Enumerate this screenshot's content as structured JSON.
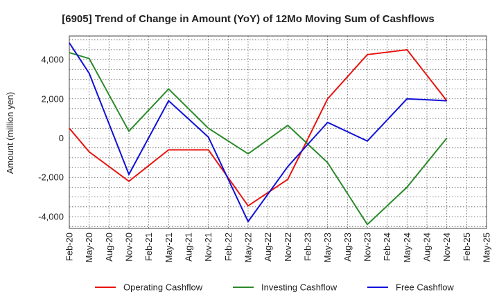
{
  "chart_data": {
    "type": "line",
    "title": "[6905]  Trend of Change in Amount (YoY) of 12Mo Moving Sum of Cashflows",
    "xlabel": "",
    "ylabel": "Amount (million yen)",
    "categories": [
      "Feb-20",
      "May-20",
      "Aug-20",
      "Nov-20",
      "Feb-21",
      "May-21",
      "Aug-21",
      "Nov-21",
      "Feb-22",
      "May-22",
      "Aug-22",
      "Nov-22",
      "Feb-23",
      "May-23",
      "Aug-23",
      "Nov-23",
      "Feb-24",
      "May-24",
      "Aug-24",
      "Nov-24",
      "Feb-25",
      "May-25"
    ],
    "yticks": [
      -4000,
      -2000,
      0,
      2000,
      4000
    ],
    "ytick_labels": [
      "-4,000",
      "-2,000",
      "0",
      "2,000",
      "4,000"
    ],
    "ylim": [
      -4600,
      5200
    ],
    "grid": true,
    "legend_position": "bottom",
    "series": [
      {
        "name": "Operating Cashflow",
        "color": "#e8130f",
        "values": [
          500,
          -700,
          null,
          -2200,
          null,
          -600,
          null,
          -600,
          null,
          -3450,
          null,
          -2100,
          null,
          2000,
          null,
          4250,
          null,
          4500,
          null,
          1900,
          null,
          null
        ]
      },
      {
        "name": "Investing Cashflow",
        "color": "#2a8a2a",
        "values": [
          4350,
          4050,
          null,
          350,
          null,
          2500,
          null,
          500,
          null,
          -800,
          null,
          650,
          null,
          -1250,
          null,
          -4400,
          null,
          -2500,
          null,
          0,
          null,
          null
        ]
      },
      {
        "name": "Free Cashflow",
        "color": "#1010d8",
        "values": [
          4850,
          3300,
          null,
          -1850,
          null,
          1900,
          null,
          50,
          null,
          -4250,
          null,
          -1450,
          null,
          800,
          null,
          -150,
          null,
          2000,
          null,
          1900,
          null,
          null
        ]
      }
    ]
  }
}
